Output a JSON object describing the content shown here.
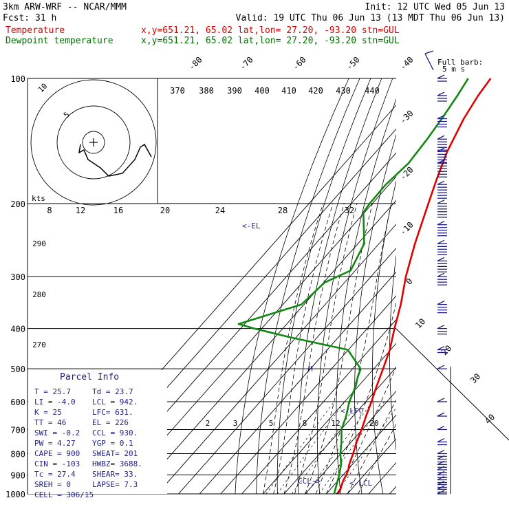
{
  "header": {
    "model": "3km ARW-WRF -- NCAR/MMM",
    "init": "Init: 12 UTC Wed 05 Jun 13",
    "forecast": "Fcst:    31 h",
    "valid": "Valid: 19 UTC Thu 06 Jun 13 (13 MDT Thu 06 Jun 13)"
  },
  "legend": {
    "temperature": {
      "label": "Temperature",
      "info": "x,y=651.21, 65.02   lat,lon= 27.20, -93.20  stn=GUL",
      "color": "#e00000"
    },
    "dewpoint": {
      "label": "Dewpoint temperature",
      "info": "x,y=651.21, 65.02   lat,lon= 27.20, -93.20  stn=GUL",
      "color": "#118811"
    }
  },
  "barb_legend": {
    "title": "Full barb:",
    "unit": "5 m s"
  },
  "axes": {
    "pressure_labels": [
      "100",
      "200",
      "300",
      "400",
      "500",
      "600",
      "700",
      "800",
      "900",
      "1000"
    ],
    "isotherm_labels": [
      "-80",
      "-70",
      "-60",
      "-50",
      "-40",
      "-30",
      "-20",
      "-10",
      "0",
      "10",
      "20",
      "30",
      "40"
    ],
    "theta_labels": [
      "370",
      "380",
      "390",
      "400",
      "410",
      "420",
      "430",
      "440"
    ],
    "hodograph_speed_labels": [
      "8",
      "12",
      "16",
      "20",
      "24",
      "28",
      "32"
    ],
    "hodograph_ring_labels": [
      "5",
      "10"
    ],
    "hodograph_unit": "kts",
    "theta_e_labels": [
      "290",
      "280",
      "270"
    ],
    "mixing_ratio_labels": [
      "2",
      "3",
      "5",
      "8",
      "12",
      "20"
    ]
  },
  "annotations": {
    "el": "<-EL",
    "lfc": "<-LFC",
    "lcl": "<-LCL",
    "ccl": "CCL->",
    "m": "M"
  },
  "parcel_info": {
    "title": "Parcel Info",
    "rows": [
      {
        "left": "T   =  25.7",
        "right": "Td  =  23.7"
      },
      {
        "left": "LI  =  -4.0",
        "right": "LCL =  942."
      },
      {
        "left": "K   =    25",
        "right": "LFC=  631."
      },
      {
        "left": "TT  =    46",
        "right": "EL  =   226"
      },
      {
        "left": "SWI =  -0.2",
        "right": "CCL =  930."
      },
      {
        "left": "PW  =  4.27",
        "right": "YGP =   0.1"
      },
      {
        "left": "CAPE =   900",
        "right": "SWEAT=  201"
      },
      {
        "left": "CIN =  -103",
        "right": "HWBZ= 3688."
      },
      {
        "left": "Tc  =  27.4",
        "right": "SHEAR=  33."
      },
      {
        "left": "SREH =    0",
        "right": "LAPSE=  7.3"
      },
      {
        "left": "CELL = 306/15",
        "right": ""
      }
    ]
  },
  "chart_data": {
    "type": "line",
    "title": "",
    "xlabel": "",
    "ylabel": "",
    "y_scale": "log-pressure",
    "pressure_range_hpa": [
      1000,
      100
    ],
    "series": [
      {
        "name": "Temperature",
        "color": "#e00000",
        "pressure_hpa": [
          1000,
          985,
          975,
          950,
          925,
          900,
          875,
          850,
          800,
          750,
          700,
          650,
          600,
          550,
          500,
          450,
          400,
          350,
          300,
          250,
          200,
          175,
          150,
          125,
          110,
          100
        ],
        "value_c": [
          25.7,
          25.0,
          24.8,
          23.4,
          22.3,
          21.5,
          20.3,
          18.5,
          15.8,
          12.6,
          9.7,
          6.2,
          2.7,
          -1.4,
          -5.6,
          -10.4,
          -17.1,
          -24.2,
          -33.5,
          -43.0,
          -53.5,
          -59.7,
          -66.4,
          -72.3,
          -75.2,
          -76.5
        ]
      },
      {
        "name": "Dewpoint temperature",
        "color": "#118811",
        "pressure_hpa": [
          1000,
          985,
          950,
          900,
          850,
          800,
          750,
          700,
          650,
          600,
          550,
          525,
          500,
          450,
          420,
          400,
          390,
          350,
          310,
          290,
          250,
          210,
          200,
          180,
          160,
          140,
          125,
          110,
          100
        ],
        "value_c": [
          23.7,
          22.9,
          21.0,
          18.1,
          14.7,
          9.8,
          5.4,
          0.2,
          -3.2,
          -7.8,
          -11.3,
          -14.0,
          -16.2,
          -30.3,
          -62.8,
          -83.5,
          -92.8,
          -71.2,
          -69.5,
          -62.2,
          -67.0,
          -80.6,
          -81.3,
          -81.6,
          -79.8,
          -81.1,
          -82.7,
          -85.0,
          -87.1
        ]
      }
    ]
  },
  "winds": {
    "note": "wind barbs, speeds in m/s as drawn (full barb = 5 m/s)",
    "pressure_hpa": [
      1000,
      975,
      950,
      925,
      900,
      875,
      850,
      825,
      800,
      750,
      700,
      650,
      600,
      500,
      450,
      400,
      350,
      300,
      275,
      250,
      225,
      200,
      180,
      160,
      150,
      140,
      125,
      110,
      100
    ],
    "speed_ms": [
      5,
      10,
      10,
      10,
      10,
      10,
      10,
      10,
      10,
      10,
      5,
      5,
      5,
      5,
      10,
      15,
      20,
      20,
      25,
      25,
      25,
      30,
      30,
      30,
      25,
      25,
      20,
      15,
      10
    ],
    "color": "#1c1c80"
  }
}
